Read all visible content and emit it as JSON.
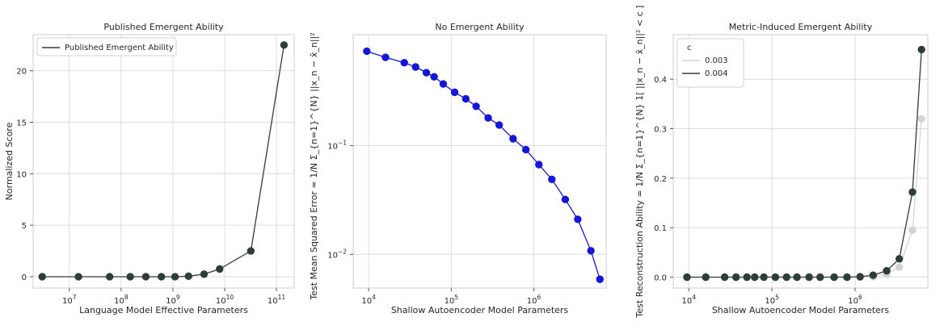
{
  "chart_data": [
    {
      "type": "line",
      "title": "Published Emergent Ability",
      "xlabel": "Language Model Effective Parameters",
      "ylabel": "Normalized Score",
      "xscale": "log",
      "xlim": [
        2000000.0,
        220000000000.0
      ],
      "ylim": [
        -1.1,
        23.5
      ],
      "x_ticks": [
        {
          "value": 10000000.0,
          "base": "10",
          "exp": "7"
        },
        {
          "value": 100000000.0,
          "base": "10",
          "exp": "8"
        },
        {
          "value": 1000000000.0,
          "base": "10",
          "exp": "9"
        },
        {
          "value": 10000000000.0,
          "base": "10",
          "exp": "10"
        },
        {
          "value": 100000000000.0,
          "base": "10",
          "exp": "11"
        }
      ],
      "y_ticks": [
        {
          "value": 0,
          "label": "0"
        },
        {
          "value": 5,
          "label": "5"
        },
        {
          "value": 10,
          "label": "10"
        },
        {
          "value": 15,
          "label": "15"
        },
        {
          "value": 20,
          "label": "20"
        }
      ],
      "grid": true,
      "legend": {
        "position": "top-left",
        "entries": [
          {
            "label": "Published Emergent Ability",
            "color": "#2f3e34"
          }
        ]
      },
      "series": [
        {
          "name": "Published Emergent Ability",
          "color": "#2f3e34",
          "x": [
            3000000.0,
            15000000.0,
            60000000.0,
            150000000.0,
            300000000.0,
            600000000.0,
            1100000000.0,
            2000000000.0,
            4000000000.0,
            8000000000.0,
            32000000000.0,
            140000000000.0
          ],
          "y": [
            0.0,
            0.0,
            0.0,
            0.0,
            0.0,
            0.0,
            0.0,
            0.05,
            0.25,
            0.75,
            2.5,
            22.5
          ]
        }
      ]
    },
    {
      "type": "line",
      "title": "No Emergent Ability",
      "xlabel": "Shallow Autoencoder Model Parameters",
      "ylabel": "Test Mean Squared Error   =  1/N Σ_{n=1}^{N} ||x_n − x̂_n||²",
      "xscale": "log",
      "yscale": "log",
      "xlim": [
        6500.0,
        7500000.0
      ],
      "ylim": [
        0.0049,
        1.05
      ],
      "x_ticks": [
        {
          "value": 10000.0,
          "base": "10",
          "exp": "4"
        },
        {
          "value": 100000.0,
          "base": "10",
          "exp": "5"
        },
        {
          "value": 1000000.0,
          "base": "10",
          "exp": "6"
        }
      ],
      "y_ticks": [
        {
          "value": 0.01,
          "base": "10",
          "exp": "−2"
        },
        {
          "value": 0.1,
          "base": "10",
          "exp": "−1"
        }
      ],
      "grid": true,
      "series": [
        {
          "color": "#1616d8",
          "x": [
            9500,
            16000,
            27000,
            37000,
            50000,
            62000,
            80000,
            110000,
            150000,
            200000,
            280000,
            380000,
            560000,
            800000,
            1150000,
            1650000,
            2400000,
            3400000,
            4900000,
            6300000
          ],
          "y": [
            0.74,
            0.65,
            0.58,
            0.53,
            0.47,
            0.43,
            0.37,
            0.31,
            0.27,
            0.23,
            0.18,
            0.155,
            0.116,
            0.092,
            0.067,
            0.049,
            0.032,
            0.021,
            0.0108,
            0.0059
          ]
        }
      ]
    },
    {
      "type": "line",
      "title": "Metric-Induced Emergent Ability",
      "xlabel": "Shallow Autoencoder Model Parameters",
      "ylabel": "Test Reconstruction Ability   =  1/N Σ_{n=1}^{N} 1[ ||x_n − x̂_n||² < c ]",
      "xscale": "log",
      "xlim": [
        6500.0,
        7500000.0
      ],
      "ylim": [
        -0.022,
        0.49
      ],
      "x_ticks": [
        {
          "value": 10000.0,
          "base": "10",
          "exp": "4"
        },
        {
          "value": 100000.0,
          "base": "10",
          "exp": "5"
        },
        {
          "value": 1000000.0,
          "base": "10",
          "exp": "6"
        }
      ],
      "y_ticks": [
        {
          "value": 0.0,
          "label": "0.0"
        },
        {
          "value": 0.1,
          "label": "0.1"
        },
        {
          "value": 0.2,
          "label": "0.2"
        },
        {
          "value": 0.3,
          "label": "0.3"
        },
        {
          "value": 0.4,
          "label": "0.4"
        }
      ],
      "grid": true,
      "legend": {
        "position": "top-left",
        "title": "c",
        "entries": [
          {
            "label": "0.003",
            "color": "#d4d4d4"
          },
          {
            "label": "0.004",
            "color": "#2f3e34"
          }
        ]
      },
      "series": [
        {
          "name": "0.003",
          "color": "#d4d4d4",
          "x": [
            9500,
            16000,
            27000,
            37000,
            50000,
            62000,
            80000,
            110000,
            150000,
            200000,
            280000,
            380000,
            560000,
            800000,
            1150000,
            1650000,
            2400000,
            3400000,
            4900000,
            6300000
          ],
          "y": [
            0,
            0,
            0,
            0,
            0,
            0,
            0,
            0,
            0,
            0,
            0,
            0,
            0,
            0,
            0,
            0.001,
            0.006,
            0.02,
            0.095,
            0.32
          ]
        },
        {
          "name": "0.004",
          "color": "#2f3e34",
          "x": [
            9500,
            16000,
            27000,
            37000,
            50000,
            62000,
            80000,
            110000,
            150000,
            200000,
            280000,
            380000,
            560000,
            800000,
            1150000,
            1650000,
            2400000,
            3400000,
            4900000,
            6300000
          ],
          "y": [
            0,
            0,
            0,
            0,
            0,
            0,
            0,
            0,
            0,
            0,
            0,
            0,
            0,
            0,
            0.001,
            0.004,
            0.013,
            0.037,
            0.172,
            0.46
          ]
        }
      ]
    }
  ]
}
